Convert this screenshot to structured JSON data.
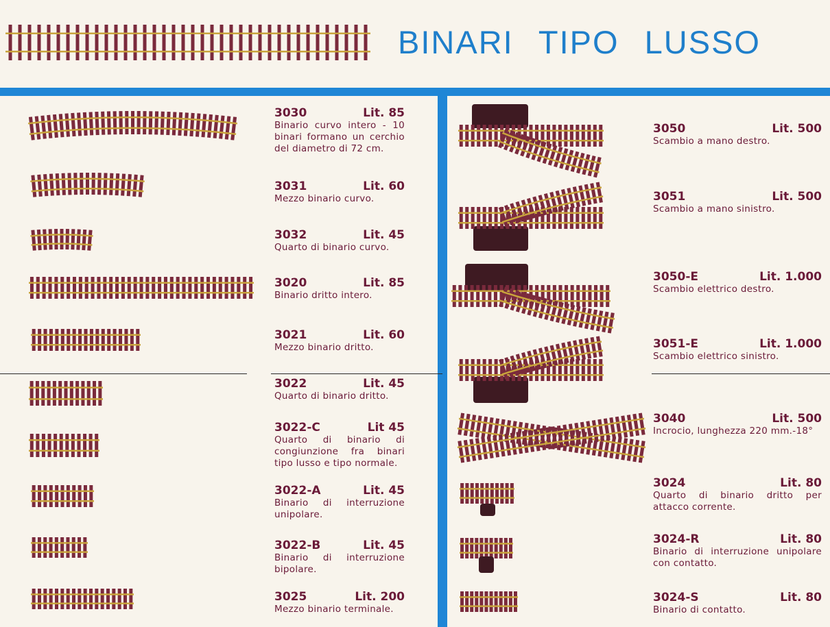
{
  "header": {
    "title": "BINARI TIPO LUSSO",
    "accent": "#1f86d6"
  },
  "colors": {
    "ties": "#7a2a3c",
    "rails": "#c9a43c",
    "text": "#6a1a38"
  },
  "left": [
    {
      "code": "3030",
      "price": "Lit. 85",
      "desc": "Binario curvo intero - 10 binari formano un cerchio del diametro di 72 cm."
    },
    {
      "code": "3031",
      "price": "Lit. 60",
      "desc": "Mezzo binario curvo."
    },
    {
      "code": "3032",
      "price": "Lit. 45",
      "desc": "Quarto di binario curvo."
    },
    {
      "code": "3020",
      "price": "Lit. 85",
      "desc": "Binario dritto intero."
    },
    {
      "code": "3021",
      "price": "Lit. 60",
      "desc": "Mezzo binario dritto."
    },
    {
      "code": "3022",
      "price": "Lit. 45",
      "desc": "Quarto di binario dritto."
    },
    {
      "code": "3022-C",
      "price": "Lit 45",
      "desc": "Quarto di binario di congiunzione fra binari tipo lusso e tipo normale."
    },
    {
      "code": "3022-A",
      "price": "Lit. 45",
      "desc": "Binario di interruzione unipolare."
    },
    {
      "code": "3022-B",
      "price": "Lit. 45",
      "desc": "Binario di interruzione bipolare."
    },
    {
      "code": "3025",
      "price": "Lit. 200",
      "desc": "Mezzo binario terminale."
    }
  ],
  "right": [
    {
      "code": "3050",
      "price": "Lit. 500",
      "desc": "Scambio a mano destro."
    },
    {
      "code": "3051",
      "price": "Lit. 500",
      "desc": "Scambio a mano sinistro."
    },
    {
      "code": "3050-E",
      "price": "Lit. 1.000",
      "desc": "Scambio elettrico destro."
    },
    {
      "code": "3051-E",
      "price": "Lit. 1.000",
      "desc": "Scambio elettrico sinistro."
    },
    {
      "code": "3040",
      "price": "Lit. 500",
      "desc": "Incrocio, lunghezza 220 mm.-18°"
    },
    {
      "code": "3024",
      "price": "Lit. 80",
      "desc": "Quarto di binario dritto per attacco corrente."
    },
    {
      "code": "3024-R",
      "price": "Lit. 80",
      "desc": "Binario di interruzione unipolare con contatto."
    },
    {
      "code": "3024-S",
      "price": "Lit. 80",
      "desc": "Binario di contatto."
    }
  ]
}
